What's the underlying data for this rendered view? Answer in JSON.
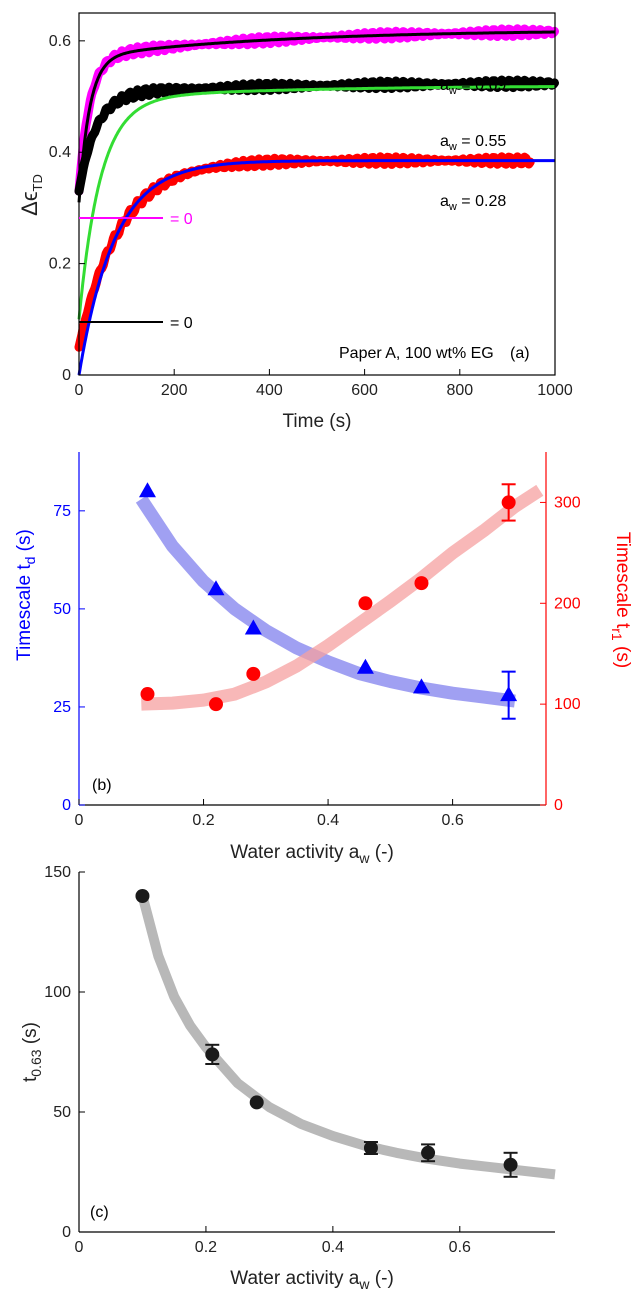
{
  "chart_data": [
    {
      "type": "line",
      "panel_label": "(a)",
      "caption": "Paper A, 100 wt% EG",
      "xlabel": "Time (s)",
      "ylabel_symbol": "Δϵ",
      "ylabel_sub": "TD",
      "xlim": [
        0,
        1000
      ],
      "ylim": [
        0,
        0.65
      ],
      "xticks": [
        "0",
        "200",
        "400",
        "600",
        "800",
        "1000"
      ],
      "yticks": [
        "0",
        "0.2",
        "0.4",
        "0.6"
      ],
      "series": [
        {
          "color": "#ff00ff",
          "kind": "measured",
          "t_start": 0,
          "t_end": 1000,
          "y0": 0.33,
          "plateau": 0.62,
          "tau": 22,
          "drift": 0.05
        },
        {
          "color": "#000000",
          "kind": "fit",
          "t_start": 0,
          "t_end": 1000,
          "y0": 0.31,
          "plateau": 0.62,
          "tau": 22,
          "drift": 0.05
        },
        {
          "color": "#000000",
          "kind": "measured",
          "t_start": 0,
          "t_end": 1000,
          "y0": 0.33,
          "plateau": 0.525,
          "tau": 35,
          "drift": 0.02
        },
        {
          "color": "#33dd33",
          "kind": "fit",
          "t_start": 0,
          "t_end": 1000,
          "y0": 0.1,
          "plateau": 0.52,
          "tau": 45,
          "drift": 0.025
        },
        {
          "color": "#ff0000",
          "kind": "measured",
          "t_start": 0,
          "t_end": 950,
          "y0": 0.05,
          "plateau": 0.385,
          "tau": 85,
          "drift": 0.0
        },
        {
          "color": "#0000ff",
          "kind": "fit",
          "t_start": 0,
          "t_end": 1000,
          "y0": 0.0,
          "plateau": 0.385,
          "tau": 75,
          "drift": 0.0
        }
      ],
      "aw_labels": [
        {
          "prefix": "a",
          "sub": "w",
          "text": " = 0.69",
          "color": "#000000"
        },
        {
          "prefix": "a",
          "sub": "w",
          "text": " = 0.55",
          "color": "#000000"
        },
        {
          "prefix": "a",
          "sub": "w",
          "text": " = 0.28",
          "color": "#000000"
        }
      ],
      "zero_markers": [
        {
          "y": 0.3,
          "color": "#ff00ff",
          "label": "= 0"
        },
        {
          "y": 0.1,
          "color": "#000000",
          "label": "= 0"
        }
      ]
    },
    {
      "type": "scatter",
      "panel_label": "(b)",
      "xlabel": "Water activity a",
      "xlabel_sub": "w",
      "xlabel_suffix": " (-)",
      "xlim": [
        0,
        0.75
      ],
      "xticks": [
        "0",
        "0.2",
        "0.4",
        "0.6"
      ],
      "left_axis": {
        "label": "Timescale t",
        "label_sub": "d",
        "label_suffix": " (s)",
        "color": "#0000ff",
        "ylim": [
          0,
          90
        ],
        "yticks": [
          "0",
          "25",
          "50",
          "75"
        ]
      },
      "right_axis": {
        "label": "Timescale t",
        "label_sub": "r1",
        "label_suffix": " (s)",
        "color": "#ff0000",
        "ylim": [
          0,
          350
        ],
        "yticks": [
          "0",
          "100",
          "200",
          "300"
        ]
      },
      "series": [
        {
          "axis": "left",
          "marker": "triangle",
          "color": "#0000ff",
          "x": [
            0.11,
            0.22,
            0.28,
            0.46,
            0.55,
            0.69
          ],
          "y": [
            80,
            55,
            45,
            35,
            30,
            28
          ],
          "err_index": 5,
          "err": 6
        },
        {
          "axis": "right",
          "marker": "circle",
          "color": "#ff0000",
          "x": [
            0.11,
            0.22,
            0.28,
            0.46,
            0.55,
            0.69
          ],
          "y": [
            110,
            100,
            130,
            200,
            220,
            300
          ],
          "err_index": 5,
          "err": 18
        }
      ],
      "fits": [
        {
          "axis": "left",
          "color": "#8080ee",
          "x": [
            0.1,
            0.15,
            0.2,
            0.25,
            0.3,
            0.35,
            0.4,
            0.45,
            0.5,
            0.55,
            0.6,
            0.65,
            0.7
          ],
          "y": [
            78,
            66,
            57,
            50,
            44.5,
            40,
            36.5,
            33.5,
            31.5,
            29.8,
            28.5,
            27.5,
            26.5
          ]
        },
        {
          "axis": "right",
          "color": "#f5a0a0",
          "x": [
            0.1,
            0.15,
            0.2,
            0.25,
            0.3,
            0.35,
            0.4,
            0.45,
            0.5,
            0.55,
            0.6,
            0.65,
            0.7,
            0.74
          ],
          "y": [
            100,
            101,
            104,
            110,
            122,
            138,
            158,
            180,
            202,
            225,
            250,
            272,
            296,
            312
          ]
        }
      ]
    },
    {
      "type": "scatter",
      "panel_label": "(c)",
      "xlabel": "Water activity a",
      "xlabel_sub": "w",
      "xlabel_suffix": " (-)",
      "ylabel": "t",
      "ylabel_sub": "0.63",
      "ylabel_suffix": " (s)",
      "xlim": [
        0,
        0.75
      ],
      "ylim": [
        0,
        150
      ],
      "xticks": [
        "0",
        "0.2",
        "0.4",
        "0.6"
      ],
      "yticks": [
        "0",
        "50",
        "100",
        "150"
      ],
      "series": [
        {
          "marker": "circle",
          "color": "#1a1a1a",
          "x": [
            0.1,
            0.21,
            0.28,
            0.46,
            0.55,
            0.68
          ],
          "y": [
            140,
            74,
            54,
            35,
            33,
            28
          ],
          "err": [
            0,
            4,
            0,
            2.5,
            3.5,
            5
          ]
        }
      ],
      "fit": {
        "color": "#b8b8b8",
        "x": [
          0.1,
          0.125,
          0.15,
          0.175,
          0.2,
          0.25,
          0.3,
          0.35,
          0.4,
          0.45,
          0.5,
          0.55,
          0.6,
          0.65,
          0.7,
          0.75
        ],
        "y": [
          140,
          115,
          98,
          86,
          77,
          62,
          52,
          45,
          40,
          36,
          33,
          30.5,
          28.5,
          27,
          25.5,
          24
        ]
      }
    }
  ]
}
